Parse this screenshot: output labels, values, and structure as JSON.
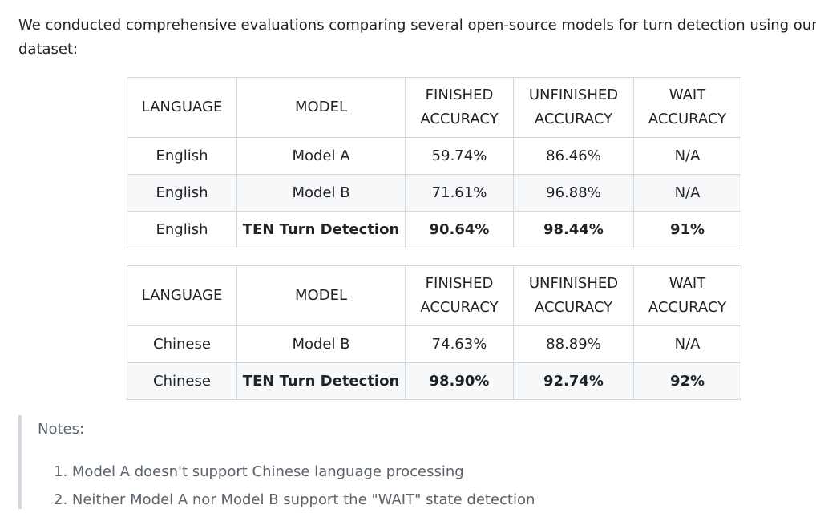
{
  "intro_text": "We conducted comprehensive evaluations comparing several open-source models for turn detection using our test dataset:",
  "tables": [
    {
      "headers": {
        "language": "LANGUAGE",
        "model": "MODEL",
        "finished_line1": "FINISHED",
        "finished_line2": "ACCURACY",
        "unfinished_line1": "UNFINISHED",
        "unfinished_line2": "ACCURACY",
        "wait_line1": "WAIT",
        "wait_line2": "ACCURACY"
      },
      "rows": [
        {
          "language": "English",
          "model": "Model A",
          "finished": "59.74%",
          "unfinished": "86.46%",
          "wait": "N/A"
        },
        {
          "language": "English",
          "model": "Model B",
          "finished": "71.61%",
          "unfinished": "96.88%",
          "wait": "N/A"
        },
        {
          "language": "English",
          "model": "TEN Turn Detection",
          "finished": "90.64%",
          "unfinished": "98.44%",
          "wait": "91%"
        }
      ]
    },
    {
      "headers": {
        "language": "LANGUAGE",
        "model": "MODEL",
        "finished_line1": "FINISHED",
        "finished_line2": "ACCURACY",
        "unfinished_line1": "UNFINISHED",
        "unfinished_line2": "ACCURACY",
        "wait_line1": "WAIT",
        "wait_line2": "ACCURACY"
      },
      "rows": [
        {
          "language": "Chinese",
          "model": "Model B",
          "finished": "74.63%",
          "unfinished": "88.89%",
          "wait": "N/A"
        },
        {
          "language": "Chinese",
          "model": "TEN Turn Detection",
          "finished": "98.90%",
          "unfinished": "92.74%",
          "wait": "92%"
        }
      ]
    }
  ],
  "notes": {
    "title": "Notes:",
    "items": [
      "1. Model A doesn't support Chinese language processing",
      "2. Neither Model A nor Model B support the \"WAIT\" state detection"
    ]
  }
}
